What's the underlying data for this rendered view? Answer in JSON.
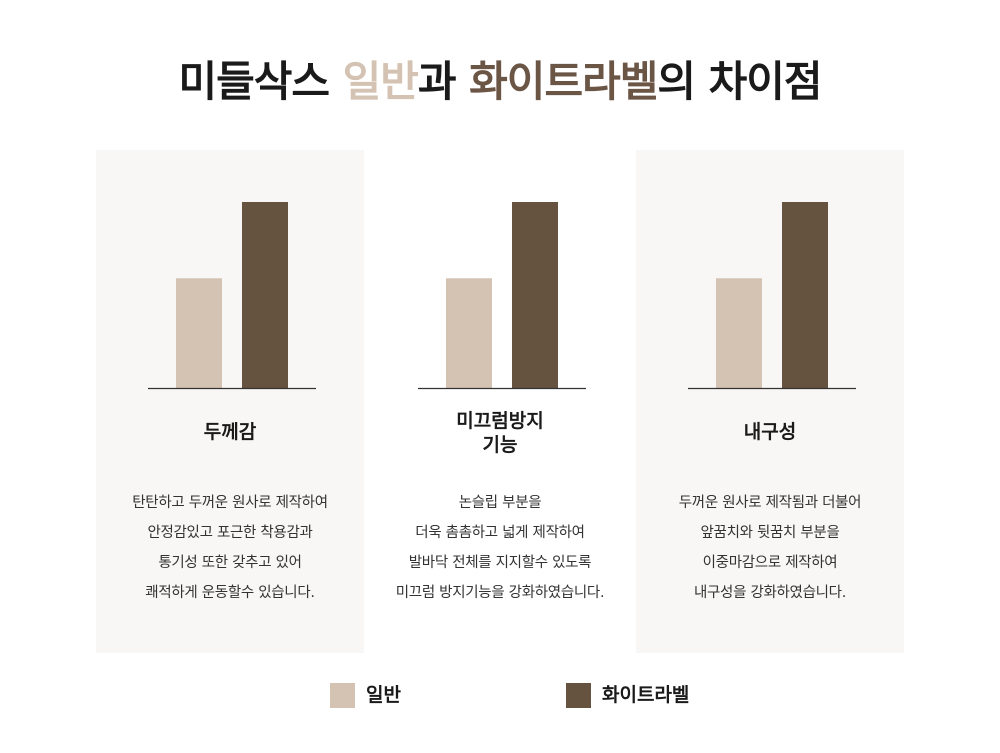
{
  "title": {
    "prefix": "미들삭스 ",
    "highlight1": "일반",
    "mid": "과 ",
    "highlight2": "화이트라벨",
    "suffix": "의 차이점"
  },
  "colors": {
    "general": "#d4c3b2",
    "white_label": "#66533f"
  },
  "chart_data": [
    {
      "type": "bar",
      "categories": [
        "두께감"
      ],
      "series": [
        {
          "name": "일반",
          "values": [
            0.59
          ]
        },
        {
          "name": "화이트라벨",
          "values": [
            1.0
          ]
        }
      ],
      "title": "두께감",
      "xlabel": "",
      "ylabel": "",
      "description": [
        "탄탄하고 두꺼운 원사로 제작하여",
        "안정감있고 포근한 착용감과",
        "통기성 또한 갖추고 있어",
        "쾌적하게 운동할수 있습니다."
      ]
    },
    {
      "type": "bar",
      "categories": [
        "미끄럼방지 기능"
      ],
      "series": [
        {
          "name": "일반",
          "values": [
            0.59
          ]
        },
        {
          "name": "화이트라벨",
          "values": [
            1.0
          ]
        }
      ],
      "title": [
        "미끄럼방지",
        "기능"
      ],
      "xlabel": "",
      "ylabel": "",
      "description": [
        "논슬립 부분을",
        "더욱 촘촘하고 넓게 제작하여",
        "발바닥 전체를 지지할수 있도록",
        "미끄럼 방지기능을 강화하였습니다."
      ]
    },
    {
      "type": "bar",
      "categories": [
        "내구성"
      ],
      "series": [
        {
          "name": "일반",
          "values": [
            0.59
          ]
        },
        {
          "name": "화이트라벨",
          "values": [
            1.0
          ]
        }
      ],
      "title": "내구성",
      "xlabel": "",
      "ylabel": "",
      "description": [
        "두꺼운 원사로 제작됨과 더불어",
        "앞꿈치와 뒷꿈치 부분을",
        "이중마감으로 제작하여",
        "내구성을 강화하였습니다."
      ]
    }
  ],
  "legend": [
    {
      "label": "일반"
    },
    {
      "label": "화이트라벨"
    }
  ]
}
